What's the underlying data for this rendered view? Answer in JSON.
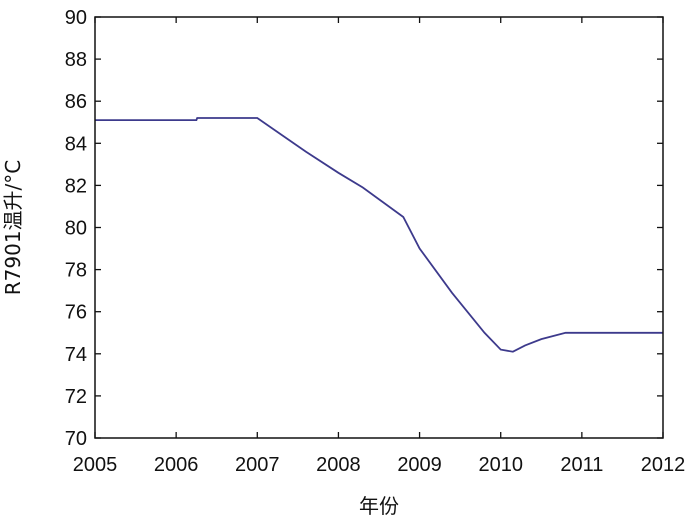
{
  "chart_data": {
    "type": "line",
    "xlabel": "年份",
    "ylabel": "R7901温升/°C",
    "xlim": [
      2005,
      2012
    ],
    "ylim": [
      70,
      90
    ],
    "xticks": [
      2005,
      2006,
      2007,
      2008,
      2009,
      2010,
      2011,
      2012
    ],
    "yticks": [
      70,
      72,
      74,
      76,
      78,
      80,
      82,
      84,
      86,
      88,
      90
    ],
    "grid": false,
    "series": [
      {
        "color": "#3d3a8c",
        "points": [
          [
            2005.0,
            85.1
          ],
          [
            2006.25,
            85.1
          ],
          [
            2006.26,
            85.2
          ],
          [
            2007.0,
            85.2
          ],
          [
            2007.3,
            84.4
          ],
          [
            2007.6,
            83.6
          ],
          [
            2008.0,
            82.6
          ],
          [
            2008.3,
            81.9
          ],
          [
            2008.8,
            80.5
          ],
          [
            2009.0,
            79.0
          ],
          [
            2009.4,
            76.9
          ],
          [
            2009.8,
            75.0
          ],
          [
            2010.0,
            74.2
          ],
          [
            2010.15,
            74.1
          ],
          [
            2010.3,
            74.4
          ],
          [
            2010.5,
            74.7
          ],
          [
            2010.8,
            75.0
          ],
          [
            2012.0,
            75.0
          ]
        ]
      }
    ]
  }
}
